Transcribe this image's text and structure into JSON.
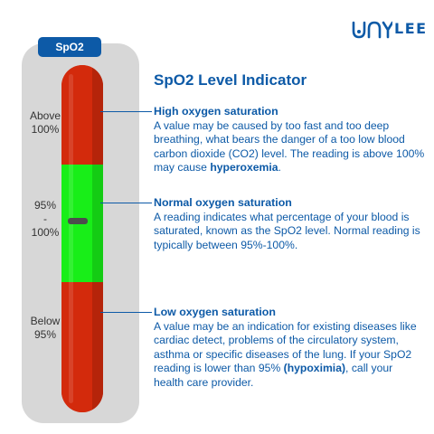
{
  "brand": {
    "logo_text": "LEE"
  },
  "gauge": {
    "badge": "SpO2",
    "indicator_percent": 95,
    "levels": {
      "above": [
        "Above",
        "100%"
      ],
      "normal": [
        "95%",
        "-",
        "100%"
      ],
      "below": [
        "Below",
        "95%"
      ]
    },
    "colors": {
      "high": "#d32a0c",
      "normal": "#18ee18",
      "low": "#d32a0c",
      "accent": "#0d5aa7"
    }
  },
  "title": "SpO2 Level Indicator",
  "sections": {
    "high": {
      "heading": "High oxygen saturation",
      "text_before": "A value may be caused by too fast and too deep breathing, what bears the danger of a too low blood carbon dioxide (CO2) level. The reading is above 100% may cause ",
      "emphasis": "hyperoxemia",
      "text_after": "."
    },
    "normal": {
      "heading": "Normal oxygen saturation",
      "text": "A reading indicates what percentage of your blood is saturated, known as the SpO2 level. Normal reading is typically between 95%-100%."
    },
    "low": {
      "heading": "Low oxygen saturation",
      "text_before": "A value may be an indication for existing diseases like cardiac detect, problems of the circulatory system, asthma or specific diseases of the lung. If your SpO2 reading is lower than 95% ",
      "emphasis": "(hypoximia)",
      "text_after": ", call your health care provider."
    }
  }
}
